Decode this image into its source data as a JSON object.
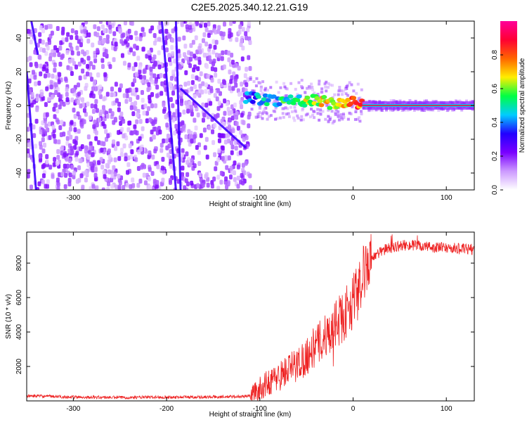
{
  "title": "C2E5.2025.340.12.21.G19",
  "chart_data": [
    {
      "type": "heatmap",
      "title": "C2E5.2025.340.12.21.G19",
      "xlabel": "Height of straight line (km)",
      "ylabel": "Frequency (Hz)",
      "xlim": [
        -350,
        130
      ],
      "ylim": [
        -50,
        50
      ],
      "xticks": [
        -300,
        -200,
        -100,
        0,
        100
      ],
      "yticks": [
        -40,
        -20,
        0,
        20,
        40
      ],
      "colorbar": {
        "label": "Normalized spectral amplitude",
        "range": [
          0,
          1
        ],
        "ticks": [
          0.0,
          0.2,
          0.4,
          0.6,
          0.8
        ],
        "tick_labels": [
          "0.0",
          "0.2",
          "0.4",
          "0.6",
          "0.8"
        ],
        "colors": [
          "#ffffff",
          "#cc99ff",
          "#7a00ff",
          "#2200ff",
          "#00ccff",
          "#00ff44",
          "#ffee00",
          "#ff6600",
          "#ff0033",
          "#ff0099"
        ]
      },
      "features": {
        "noise_region_x": [
          -350,
          -110
        ],
        "signal_track": [
          [
            -115,
            5
          ],
          [
            -100,
            4
          ],
          [
            -80,
            3
          ],
          [
            -60,
            3
          ],
          [
            -40,
            3
          ],
          [
            -20,
            1
          ],
          [
            0,
            2
          ],
          [
            10,
            0
          ],
          [
            130,
            0
          ]
        ],
        "dominant_line_x": [
          10,
          130
        ],
        "dominant_line_freq": 0
      }
    },
    {
      "type": "line",
      "xlabel": "Height of straight line (km)",
      "ylabel": "SNR (10 * v/v)",
      "xlim": [
        -350,
        130
      ],
      "ylim": [
        0,
        9800
      ],
      "xticks": [
        -300,
        -200,
        -100,
        0,
        100
      ],
      "yticks": [
        2000,
        4000,
        6000,
        8000
      ],
      "color": "#ee2222",
      "series": [
        {
          "name": "SNR",
          "x": [
            -350,
            -300,
            -250,
            -200,
            -150,
            -120,
            -110,
            -100,
            -90,
            -80,
            -70,
            -60,
            -50,
            -40,
            -30,
            -20,
            -10,
            0,
            5,
            10,
            15,
            20,
            25,
            30,
            40,
            50,
            60,
            70,
            80,
            90,
            100,
            110,
            120,
            130
          ],
          "y": [
            300,
            220,
            200,
            220,
            230,
            250,
            300,
            700,
            1100,
            1400,
            1800,
            2100,
            2600,
            3200,
            3700,
            4400,
            4900,
            5800,
            6300,
            7100,
            7800,
            8200,
            8500,
            8700,
            8900,
            9000,
            9050,
            9000,
            8950,
            8900,
            8900,
            8850,
            8800,
            8800
          ]
        }
      ]
    }
  ]
}
